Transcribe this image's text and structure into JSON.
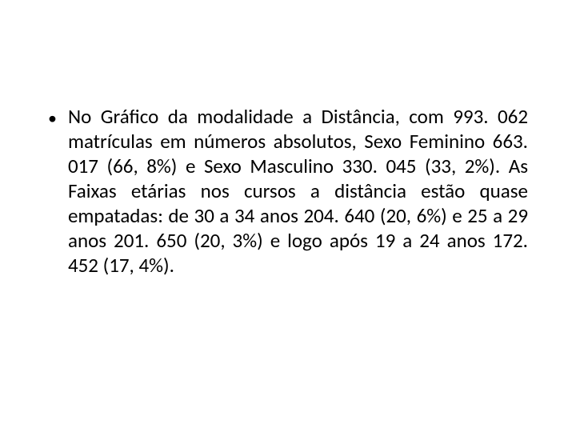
{
  "slide": {
    "background_color": "#ffffff",
    "text_color": "#000000",
    "font_family": "Calibri",
    "body_fontsize_pt": 19,
    "line_height": 1.24,
    "text_align": "justify",
    "bullet": {
      "marker": "•",
      "text": "No Gráfico da modalidade a Distância, com 993. 062 matrículas em números absolutos, Sexo Feminino 663. 017 (66, 8%) e Sexo Masculino 330. 045 (33, 2%). As Faixas etárias nos cursos a distância estão quase empatadas: de 30 a 34 anos 204. 640 (20, 6%) e 25 a 29 anos 201. 650 (20, 3%) e logo após 19 a 24 anos 172. 452 (17, 4%)."
    }
  }
}
